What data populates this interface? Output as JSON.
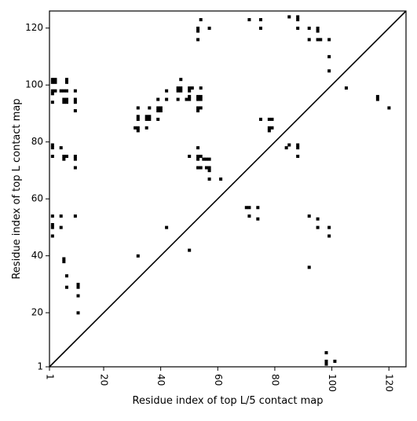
{
  "chart_data": {
    "type": "scatter",
    "subtype": "contact-map",
    "xlabel": "Residue index of top L/5 contact map",
    "ylabel": "Residue index of top L contact map",
    "xlim": [
      1,
      126
    ],
    "ylim": [
      1,
      126
    ],
    "x_ticks": [
      1,
      20,
      40,
      60,
      80,
      100,
      120
    ],
    "x_tick_labels": [
      "1",
      "20",
      "40",
      "60",
      "80",
      "100",
      "120"
    ],
    "y_ticks": [
      1,
      20,
      40,
      60,
      80,
      100,
      120
    ],
    "y_tick_labels": [
      "1",
      "20",
      "40",
      "60",
      "80",
      "100",
      "120"
    ],
    "x_tick_label_rotation": 90,
    "grid": false,
    "legend": "none",
    "marker": "square",
    "marker_color": "#000000",
    "diagonal_line": {
      "from": [
        1,
        1
      ],
      "to": [
        126,
        126
      ],
      "color": "#000000"
    },
    "points": [
      [
        98,
        6
      ],
      [
        98,
        3
      ],
      [
        98,
        2
      ],
      [
        101,
        3
      ],
      [
        2,
        102
      ],
      [
        2,
        101
      ],
      [
        3,
        102
      ],
      [
        3,
        101
      ],
      [
        7,
        102
      ],
      [
        7,
        101
      ],
      [
        2,
        98
      ],
      [
        2,
        97
      ],
      [
        3,
        98
      ],
      [
        5,
        98
      ],
      [
        6,
        98
      ],
      [
        7,
        98
      ],
      [
        10,
        98
      ],
      [
        2,
        94
      ],
      [
        6,
        95
      ],
      [
        6,
        94
      ],
      [
        7,
        95
      ],
      [
        7,
        94
      ],
      [
        10,
        95
      ],
      [
        10,
        94
      ],
      [
        10,
        91
      ],
      [
        2,
        79
      ],
      [
        2,
        78
      ],
      [
        5,
        78
      ],
      [
        2,
        75
      ],
      [
        6,
        75
      ],
      [
        6,
        74
      ],
      [
        7,
        75
      ],
      [
        10,
        75
      ],
      [
        10,
        74
      ],
      [
        10,
        71
      ],
      [
        2,
        54
      ],
      [
        5,
        54
      ],
      [
        10,
        54
      ],
      [
        2,
        51
      ],
      [
        2,
        50
      ],
      [
        5,
        50
      ],
      [
        2,
        47
      ],
      [
        6,
        39
      ],
      [
        6,
        38
      ],
      [
        7,
        33
      ],
      [
        7,
        29
      ],
      [
        11,
        30
      ],
      [
        11,
        29
      ],
      [
        11,
        26
      ],
      [
        11,
        20
      ],
      [
        32,
        92
      ],
      [
        36,
        92
      ],
      [
        32,
        89
      ],
      [
        32,
        88
      ],
      [
        35,
        89
      ],
      [
        35,
        88
      ],
      [
        36,
        89
      ],
      [
        36,
        88
      ],
      [
        39,
        88
      ],
      [
        31,
        85
      ],
      [
        32,
        85
      ],
      [
        32,
        84
      ],
      [
        35,
        85
      ],
      [
        32,
        40
      ],
      [
        39,
        92
      ],
      [
        39,
        91
      ],
      [
        40,
        92
      ],
      [
        40,
        91
      ],
      [
        39,
        95
      ],
      [
        42,
        98
      ],
      [
        42,
        95
      ],
      [
        47,
        102
      ],
      [
        46,
        99
      ],
      [
        46,
        98
      ],
      [
        47,
        99
      ],
      [
        47,
        98
      ],
      [
        46,
        95
      ],
      [
        49,
        95
      ],
      [
        50,
        95
      ],
      [
        50,
        96
      ],
      [
        50,
        99
      ],
      [
        50,
        98
      ],
      [
        51,
        99
      ],
      [
        54,
        99
      ],
      [
        53,
        96
      ],
      [
        54,
        96
      ],
      [
        53,
        95
      ],
      [
        54,
        95
      ],
      [
        53,
        92
      ],
      [
        53,
        91
      ],
      [
        54,
        92
      ],
      [
        53,
        78
      ],
      [
        50,
        75
      ],
      [
        53,
        75
      ],
      [
        53,
        74
      ],
      [
        54,
        75
      ],
      [
        55,
        74
      ],
      [
        56,
        74
      ],
      [
        57,
        74
      ],
      [
        53,
        71
      ],
      [
        54,
        71
      ],
      [
        56,
        71
      ],
      [
        57,
        71
      ],
      [
        57,
        70
      ],
      [
        57,
        67
      ],
      [
        61,
        67
      ],
      [
        42,
        50
      ],
      [
        50,
        42
      ],
      [
        53,
        120
      ],
      [
        53,
        119
      ],
      [
        57,
        120
      ],
      [
        53,
        116
      ],
      [
        54,
        123
      ],
      [
        71,
        123
      ],
      [
        75,
        123
      ],
      [
        75,
        120
      ],
      [
        70,
        57
      ],
      [
        71,
        57
      ],
      [
        74,
        57
      ],
      [
        71,
        54
      ],
      [
        74,
        53
      ],
      [
        75,
        88
      ],
      [
        78,
        88
      ],
      [
        79,
        88
      ],
      [
        78,
        85
      ],
      [
        78,
        84
      ],
      [
        79,
        85
      ],
      [
        84,
        78
      ],
      [
        85,
        79
      ],
      [
        88,
        79
      ],
      [
        88,
        78
      ],
      [
        88,
        75
      ],
      [
        85,
        124
      ],
      [
        88,
        124
      ],
      [
        88,
        123
      ],
      [
        88,
        120
      ],
      [
        92,
        120
      ],
      [
        95,
        120
      ],
      [
        95,
        119
      ],
      [
        92,
        116
      ],
      [
        95,
        116
      ],
      [
        96,
        116
      ],
      [
        99,
        116
      ],
      [
        99,
        110
      ],
      [
        99,
        105
      ],
      [
        105,
        99
      ],
      [
        116,
        96
      ],
      [
        116,
        95
      ],
      [
        120,
        92
      ],
      [
        92,
        54
      ],
      [
        95,
        53
      ],
      [
        95,
        50
      ],
      [
        99,
        50
      ],
      [
        99,
        47
      ],
      [
        92,
        36
      ]
    ]
  }
}
